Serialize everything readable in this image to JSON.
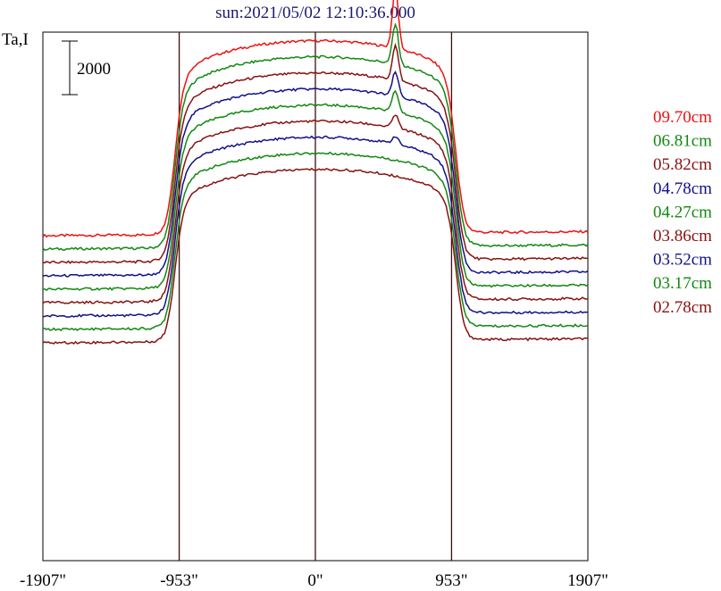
{
  "chart_data": {
    "type": "line",
    "title": "sun:2021/05/02 12:10:36.000",
    "ylabel": "Ta,I",
    "scale_bar_label": "2000",
    "scale_bar_value": 2000,
    "xlim": [
      -1907,
      1907
    ],
    "xticks": [
      {
        "value": -1907,
        "label": "-1907\""
      },
      {
        "value": -953,
        "label": "-953\""
      },
      {
        "value": 0,
        "label": "0\""
      },
      {
        "value": 953,
        "label": "953\""
      },
      {
        "value": 1907,
        "label": "1907\""
      }
    ],
    "vlines": [
      -953,
      0,
      953
    ],
    "legend_position": "right",
    "series": [
      {
        "name": "09.70cm",
        "color": "#ee1111",
        "base": 0,
        "peak": 7200,
        "bump": 2200
      },
      {
        "name": "06.81cm",
        "color": "#118811",
        "base": -500,
        "peak": 6600,
        "bump": 1500
      },
      {
        "name": "05.82cm",
        "color": "#881111",
        "base": -1000,
        "peak": 6000,
        "bump": 1300
      },
      {
        "name": "04.78cm",
        "color": "#111188",
        "base": -1500,
        "peak": 5400,
        "bump": 900
      },
      {
        "name": "04.27cm",
        "color": "#118811",
        "base": -2000,
        "peak": 4800,
        "bump": 800
      },
      {
        "name": "03.86cm",
        "color": "#881111",
        "base": -2500,
        "peak": 4200,
        "bump": 500
      },
      {
        "name": "03.52cm",
        "color": "#111188",
        "base": -3000,
        "peak": 3600,
        "bump": 300
      },
      {
        "name": "03.17cm",
        "color": "#118811",
        "base": -3500,
        "peak": 3000,
        "bump": 0
      },
      {
        "name": "02.78cm",
        "color": "#881111",
        "base": -4000,
        "peak": 2400,
        "bump": 0
      }
    ]
  }
}
